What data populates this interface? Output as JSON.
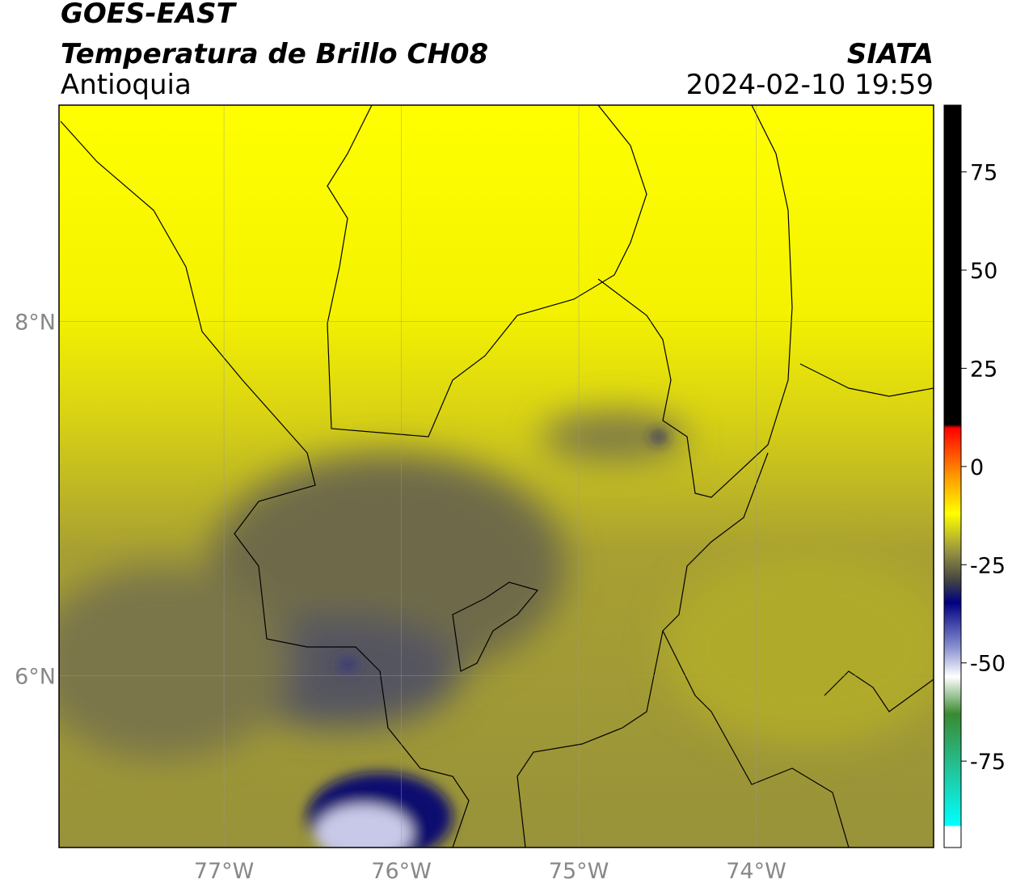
{
  "header": {
    "title": "GOES-EAST",
    "subtitle": "Temperatura de Brillo CH08",
    "region": "Antioquia",
    "source": "SIATA",
    "datetime": "2024-02-10 19:59"
  },
  "map": {
    "lonlim": [
      -77.93,
      -73.0
    ],
    "latlim": [
      5.03,
      9.22
    ],
    "lon_ticks": [
      {
        "value": -77,
        "label": "77°W"
      },
      {
        "value": -76,
        "label": "76°W"
      },
      {
        "value": -75,
        "label": "75°W"
      },
      {
        "value": -74,
        "label": "74°W"
      }
    ],
    "lat_ticks": [
      {
        "value": 8,
        "label": "8°N"
      },
      {
        "value": 6,
        "label": "6°N"
      }
    ]
  },
  "colorbar": {
    "lim": [
      -97,
      92
    ],
    "ticks": [
      75,
      50,
      25,
      0,
      -25,
      -50,
      -75
    ]
  }
}
